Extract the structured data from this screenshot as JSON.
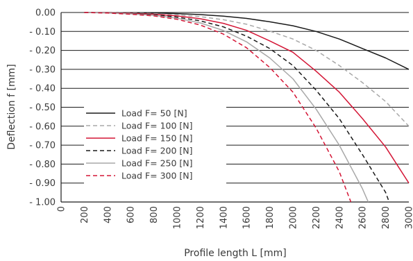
{
  "chart_data": {
    "type": "line",
    "xlabel": "Profile length L [mm]",
    "ylabel": "Deflection f [mm]",
    "xlim": [
      0,
      3000
    ],
    "ylim": [
      0.0,
      1.0
    ],
    "y_inverted": true,
    "grid": "horizontal",
    "legend_placement": "bottom-left",
    "x_ticks": [
      0,
      200,
      400,
      600,
      800,
      1000,
      1200,
      1400,
      1600,
      1800,
      2000,
      2200,
      2400,
      2600,
      2800,
      3000
    ],
    "y_ticks": [
      0,
      0.1,
      0.2,
      0.3,
      0.4,
      0.5,
      0.6,
      0.7,
      0.8,
      0.9,
      1.0
    ],
    "y_tick_labels": [
      "0.00",
      "- 0.10",
      "- 0.20",
      "- 0.30",
      "- 0.40",
      "- 0.50",
      "- 0.60",
      "- 0.70",
      "- 0.80",
      "- 0.90",
      "- 1.00"
    ],
    "series": [
      {
        "name": "Load F= 50 [N]",
        "color": "#1a1a1a",
        "dash": "solid",
        "x": [
          200,
          400,
          600,
          800,
          1000,
          1200,
          1400,
          1600,
          1800,
          2000,
          2200,
          2400,
          2600,
          2800,
          3000
        ],
        "y": [
          0.0,
          0.0005,
          0.0015,
          0.003,
          0.006,
          0.011,
          0.019,
          0.031,
          0.049,
          0.07,
          0.1,
          0.14,
          0.19,
          0.24,
          0.3
        ]
      },
      {
        "name": "Load F= 100 [N]",
        "color": "#a8a8a8",
        "dash": "dashed",
        "x": [
          200,
          400,
          600,
          800,
          1000,
          1200,
          1400,
          1600,
          1800,
          2000,
          2200,
          2400,
          2600,
          2800,
          3000
        ],
        "y": [
          0.0,
          0.001,
          0.003,
          0.006,
          0.012,
          0.022,
          0.038,
          0.062,
          0.098,
          0.14,
          0.2,
          0.28,
          0.37,
          0.47,
          0.6
        ]
      },
      {
        "name": "Load F= 150 [N]",
        "color": "#d41535",
        "dash": "solid",
        "x": [
          200,
          400,
          600,
          800,
          1000,
          1200,
          1400,
          1600,
          1800,
          2000,
          2200,
          2400,
          2600,
          2800,
          3000
        ],
        "y": [
          0.0,
          0.0015,
          0.0045,
          0.009,
          0.018,
          0.033,
          0.057,
          0.094,
          0.15,
          0.21,
          0.31,
          0.42,
          0.56,
          0.71,
          0.9
        ]
      },
      {
        "name": "Load F= 200 [N]",
        "color": "#1a1a1a",
        "dash": "dashed",
        "x": [
          200,
          400,
          600,
          800,
          1000,
          1200,
          1400,
          1600,
          1800,
          2000,
          2200,
          2400,
          2600,
          2800,
          2830
        ],
        "y": [
          0.0,
          0.002,
          0.006,
          0.012,
          0.024,
          0.044,
          0.076,
          0.125,
          0.19,
          0.28,
          0.41,
          0.56,
          0.75,
          0.95,
          1.0
        ]
      },
      {
        "name": "Load F= 250 [N]",
        "color": "#a8a8a8",
        "dash": "solid",
        "x": [
          200,
          400,
          600,
          800,
          1000,
          1200,
          1400,
          1600,
          1800,
          2000,
          2200,
          2400,
          2600,
          2650
        ],
        "y": [
          0.0,
          0.0025,
          0.0075,
          0.015,
          0.03,
          0.055,
          0.095,
          0.155,
          0.24,
          0.35,
          0.51,
          0.7,
          0.93,
          1.0
        ]
      },
      {
        "name": "Load F= 300 [N]",
        "color": "#d41535",
        "dash": "dashed",
        "x": [
          200,
          400,
          600,
          800,
          1000,
          1200,
          1400,
          1600,
          1800,
          2000,
          2200,
          2400,
          2500
        ],
        "y": [
          0.0,
          0.003,
          0.009,
          0.018,
          0.036,
          0.066,
          0.114,
          0.186,
          0.29,
          0.42,
          0.61,
          0.84,
          1.0
        ]
      }
    ]
  }
}
